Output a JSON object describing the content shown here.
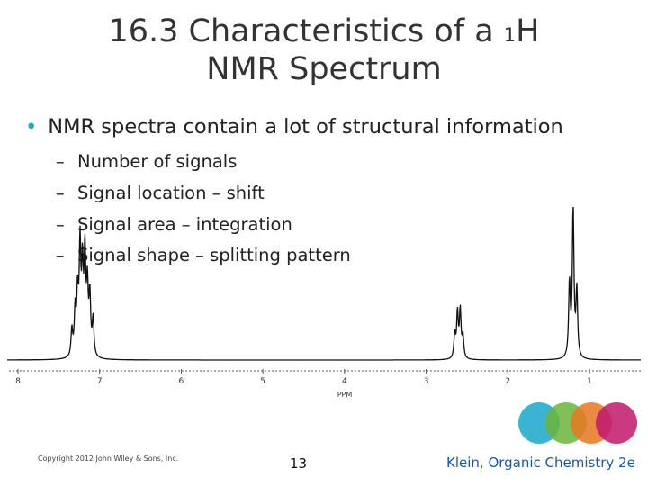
{
  "slide": {
    "title_line1_prefix": "16.3 Characteristics of a ",
    "title_sup": "1",
    "title_line1_suffix": "H",
    "title_line2": "NMR Spectrum",
    "bullet": "NMR spectra contain a lot of structural information",
    "sub_bullets": [
      "Number of signals",
      "Signal location – shift",
      "Signal area – integration",
      "Signal shape – splitting pattern"
    ],
    "copyright": "Copyright 2012 John Wiley & Sons, Inc.",
    "page_number": "13",
    "citation": "Klein, Organic Chemistry 2e"
  },
  "decor": {
    "circle_colors": [
      "#1aa6c9",
      "#6bb43c",
      "#e87722",
      "#c0186b"
    ]
  },
  "chart_data": {
    "type": "line",
    "xlabel": "PPM",
    "x_ticks": [
      "8",
      "7",
      "6",
      "5",
      "4",
      "3",
      "2",
      "1"
    ],
    "xlim": [
      8.1,
      0.4
    ],
    "peaks": [
      {
        "ppm": 7.2,
        "height": 0.72,
        "multiplet": "aromatic"
      },
      {
        "ppm": 2.6,
        "height": 0.32,
        "multiplet": "quartet"
      },
      {
        "ppm": 1.2,
        "height": 1.0,
        "multiplet": "triplet"
      }
    ]
  }
}
